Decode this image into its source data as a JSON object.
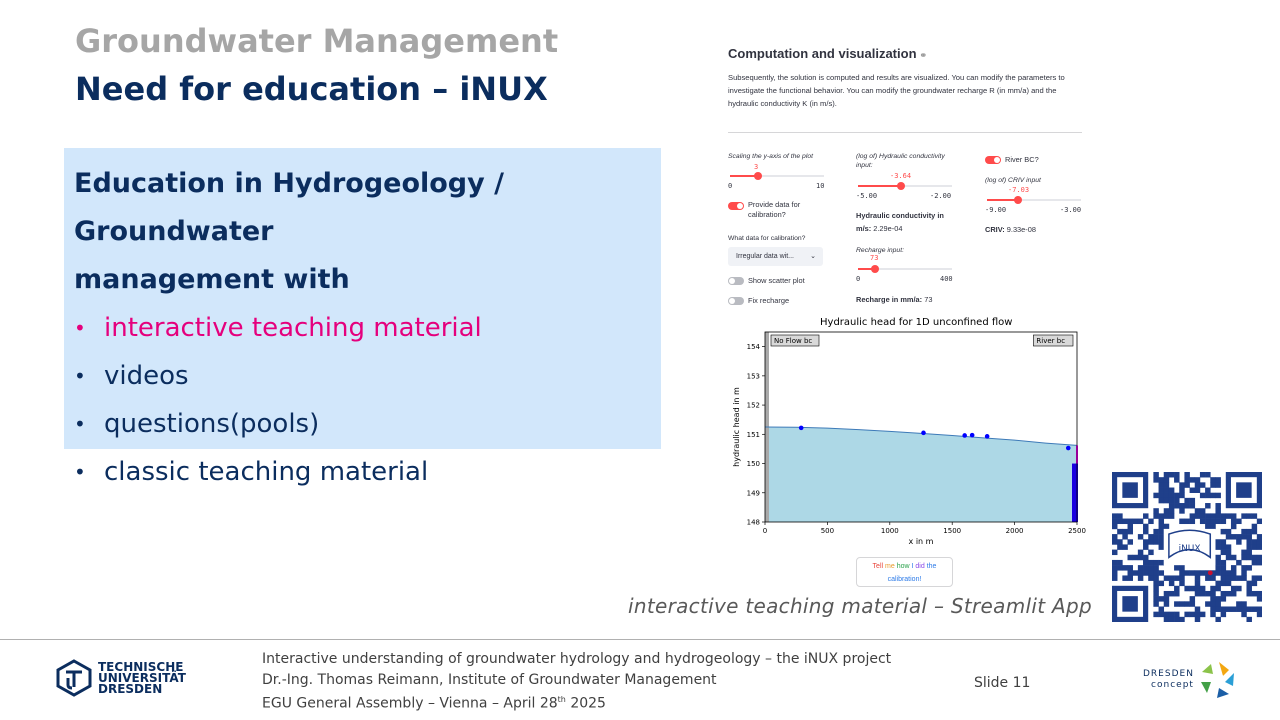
{
  "slide": {
    "pre_title": "Groundwater Management",
    "title": "Need for education – iNUX",
    "box": {
      "heading_line1": "Education in Hydrogeology / Groundwater",
      "heading_line2": "management with",
      "items": [
        {
          "text": "interactive teaching material",
          "highlight": true
        },
        {
          "text": "videos",
          "highlight": false
        },
        {
          "text": "questions(pools)",
          "highlight": false
        },
        {
          "text": "classic teaching material",
          "highlight": false
        }
      ],
      "bullet": "•"
    },
    "caption": "interactive teaching material – Streamlit App",
    "highlight_color": "#e5007d",
    "box_color": "#d2e7fb",
    "title_color": "#0b2d5e"
  },
  "app": {
    "title": "Computation and visualization",
    "desc_line1": "Subsequently, the solution is computed and results are visualized. You can modify the parameters to",
    "desc_line2": "investigate the functional behavior. You can modify the groundwater recharge R (in mm/a) and the",
    "desc_line3": "hydraulic conductivity K (in m/s).",
    "col1": {
      "yaxis_label": "Scaling the y-axis of the plot",
      "yaxis_value": "3",
      "yaxis_min": "0",
      "yaxis_max": "10",
      "yaxis_fraction": 0.3,
      "provide_data_line1": "Provide data for",
      "provide_data_line2": "calibration?",
      "what_data_label": "What data for calibration?",
      "what_data_value": "Irregular data wit...",
      "show_scatter": "Show scatter plot",
      "fix_recharge": "Fix recharge"
    },
    "col2": {
      "k_label_line1": "(log of) Hydraulic conductivity",
      "k_label_line2": "input:",
      "k_value": "-3.64",
      "k_min": "-5.00",
      "k_max": "-2.00",
      "k_fraction": 0.453,
      "k_result_line1": "Hydraulic conductivity in",
      "k_result_prefix": "m/s:",
      "k_result_value": "2.29e-04",
      "recharge_label": "Recharge input:",
      "recharge_value": "73",
      "recharge_min": "0",
      "recharge_max": "400",
      "recharge_fraction": 0.1825,
      "recharge_result_label": "Recharge in mm/a:",
      "recharge_result_value": "73"
    },
    "col3": {
      "river_bc": "River BC?",
      "criv_label": "(log of) CRIV input",
      "criv_value": "-7.03",
      "criv_min": "-9.00",
      "criv_max": "-3.00",
      "criv_fraction": 0.328,
      "criv_result_label": "CRIV:",
      "criv_result_value": "9.33e-08"
    },
    "calib_button": {
      "line1_words": [
        "Tell",
        "me",
        "how",
        "I",
        "did",
        "the"
      ],
      "line2": "calibration!"
    },
    "accent_color": "#ff4b4b"
  },
  "chart_data": {
    "type": "area",
    "title": "Hydraulic head for 1D unconfined flow",
    "xlabel": "x in m",
    "ylabel": "hydraulic head in m",
    "xlim": [
      0,
      2500
    ],
    "ylim": [
      148,
      154.5
    ],
    "xticks": [
      "0",
      "500",
      "1000",
      "1500",
      "2000",
      "2500"
    ],
    "yticks": [
      "148",
      "149",
      "150",
      "151",
      "152",
      "153",
      "154"
    ],
    "series": [
      {
        "x": [
          0,
          250,
          500,
          750,
          1000,
          1250,
          1500,
          1750,
          2000,
          2250,
          2500
        ],
        "values": [
          151.25,
          151.24,
          151.21,
          151.16,
          151.1,
          151.03,
          150.96,
          150.88,
          150.8,
          150.7,
          150.62
        ]
      }
    ],
    "scatter": {
      "x": [
        290,
        1270,
        1600,
        1660,
        1780,
        2430
      ],
      "values": [
        151.22,
        151.05,
        150.96,
        150.97,
        150.93,
        150.53
      ]
    },
    "annotations": [
      "No Flow bc",
      "River bc"
    ],
    "river_stage": 150.0
  },
  "footer": {
    "line1": "Interactive understanding of groundwater hydrology and hydrogeology – the iNUX project",
    "line2": "Dr.-Ing. Thomas Reimann, Institute of Groundwater Management",
    "line3_prefix": "EGU General Assembly – Vienna – April 28",
    "line3_sup": "th",
    "line3_suffix": " 2025",
    "slide_label": "Slide 11",
    "tud_line1": "TECHNISCHE",
    "tud_line2": "UNIVERSITÄT",
    "tud_line3": "DRESDEN",
    "dc_line1": "DRESDEN",
    "dc_line2": "concept"
  },
  "qr": {
    "center_label": "iNUX"
  }
}
